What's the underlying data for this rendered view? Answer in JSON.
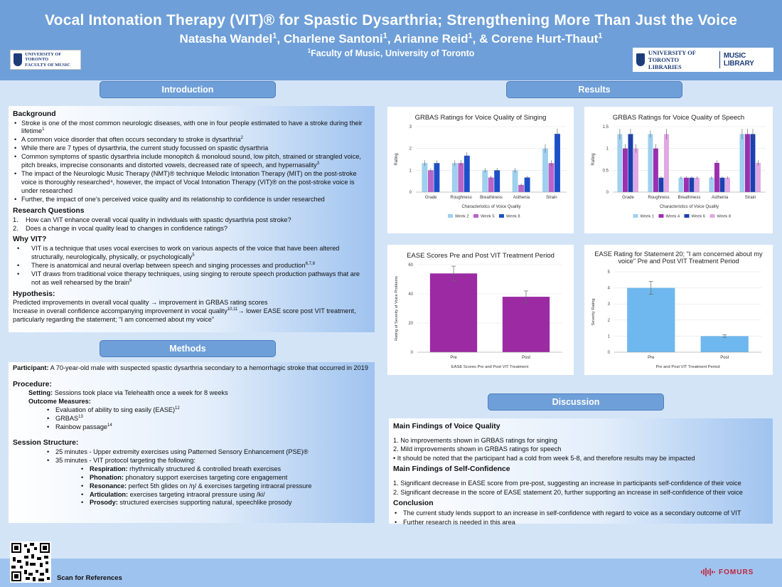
{
  "header": {
    "title": "Vocal Intonation Therapy (VIT)® for Spastic Dysarthria; Strengthening More Than Just the Voice",
    "authors": [
      {
        "name": "Natasha Wandel",
        "sup": "1"
      },
      {
        "name": "Charlene Santoni",
        "sup": "1"
      },
      {
        "name": "Arianne Reid",
        "sup": "1"
      },
      {
        "name": "Corene Hurt-Thaut",
        "sup": "1"
      }
    ],
    "author_sep": ", ",
    "author_last_sep": ", & ",
    "affiliation_sup": "1",
    "affiliation": "Faculty of Music, University of Toronto",
    "logo_left": {
      "line1": "UNIVERSITY OF TORONTO",
      "line2": "FACULTY OF MUSIC"
    },
    "logo_right": {
      "line1": "UNIVERSITY OF TORONTO",
      "line2": "LIBRARIES",
      "line3": "MUSIC LIBRARY"
    }
  },
  "sections": {
    "introduction": "Introduction",
    "results": "Results",
    "methods": "Methods",
    "discussion": "Discussion"
  },
  "introduction": {
    "background_heading": "Background",
    "background": [
      {
        "text": "Stroke is one of the most common neurologic diseases, with one in four people estimated to have a stroke during their lifetime",
        "sup": "1"
      },
      {
        "text": "A common voice disorder that often occurs secondary to stroke is dysarthria",
        "sup": "2"
      },
      {
        "text": "While there are 7 types of dysarthria, the current study focussed on spastic dysarthria",
        "sup": ""
      },
      {
        "text": "Common symptoms of spastic dysarthria include monopitch & monoloud sound, low pitch, strained or strangled voice, pitch breaks, imprecise consonants and distorted vowels, decreased rate of speech, and hypernasality",
        "sup": "3"
      },
      {
        "text": "The impact of the Neurologic Music Therapy (NMT)® technique Melodic Intonation Therapy (MIT) on the post-stroke voice is thoroughly researched⁴, however, the impact of Vocal Intonation Therapy (VIT)® on the post-stroke voice is under researched",
        "sup": ""
      },
      {
        "text": "Further, the impact of one’s perceived voice quality and its relationship to confidence is under researched",
        "sup": ""
      }
    ],
    "rq_heading": "Research Questions",
    "research_questions": [
      {
        "n": "1.",
        "text": "How can VIT enhance overall vocal quality in individuals with spastic dysarthria post stroke?"
      },
      {
        "n": "2.",
        "text": "Does a change in vocal quality lead to changes in confidence ratings?"
      }
    ],
    "why_heading": "Why VIT?",
    "why": [
      {
        "text": "VIT is a technique that uses vocal exercises to work on various aspects of the voice that have been altered structurally, neurologically, physically, or psychologically",
        "sup": "5"
      },
      {
        "text": "There is anatomical and neural overlap between speech and singing processes and production",
        "sup": "6,7,8"
      },
      {
        "text": "VIT draws from traditional voice therapy techniques, using singing to reroute speech production pathways that are not as well rehearsed by the brain",
        "sup": "9"
      }
    ],
    "hyp_heading": "Hypothesis:",
    "hyp1": "Predicted improvements in overall vocal quality → improvement in GRBAS rating scores",
    "hyp2a": "Increase in overall confidence accompanying improvement in vocal quality",
    "hyp2_sup": "10,11",
    "hyp2b": "→ lower EASE score post VIT treatment, particularly regarding the statement; “I am concerned about my voice”"
  },
  "methods": {
    "participant_label": "Participant:",
    "participant_text": "A 70-year-old male with suspected spastic dysarthria secondary to a hemorrhagic stroke that occurred in 2019",
    "procedure_heading": "Procedure:",
    "setting_label": "Setting:",
    "setting_text": "Sessions took place via Telehealth once a week for 8 weeks",
    "outcome_heading": "Outcome Measures:",
    "outcomes": [
      {
        "text": "Evaluation of ability to sing easily (EASE)",
        "sup": "12"
      },
      {
        "text": "GRBAS",
        "sup": "13"
      },
      {
        "text": "Rainbow passage",
        "sup": "14"
      }
    ],
    "structure_heading": "Session Structure:",
    "structure": [
      "25 minutes - Upper extremity exercises using Patterned Sensory Enhancement (PSE)®",
      "35 minutes - VIT protocol targeting the following:"
    ],
    "protocol": [
      {
        "label": "Respiration:",
        "text": "rhythmically structured & controlled breath exercises"
      },
      {
        "label": "Phonation:",
        "text": "phonatory support exercises targeting core engagement"
      },
      {
        "label": "Resonance:",
        "text": "perfect 5th glides on /ŋ/ & exercises targeting intraoral pressure"
      },
      {
        "label": "Articulation:",
        "text": "exercises targeting intraoral pressure using /ki/"
      },
      {
        "label": "Prosody:",
        "text": "structured exercises supporting natural, speechlike prosody"
      }
    ]
  },
  "discussion": {
    "voice_heading": "Main Findings of Voice Quality",
    "voice": [
      "1. No improvements shown in GRBAS ratings for singing",
      "2. Mild improvements shown in GRBAS ratings for speech",
      "• It should be noted that the participant had a cold from week 5-8, and therefore results may be impacted"
    ],
    "conf_heading": "Main Findings of Self-Confidence",
    "conf": [
      "1. Significant decrease in EASE score from pre-post, suggesting an increase in participants self-confidence of their voice",
      "2. Significant decrease in the score of EASE statement 20, further supporting an increase in self-confidence of their voice"
    ],
    "conclusion_heading": "Conclusion",
    "conclusion": [
      "The current study lends support to an increase in self-confidence with regard to voice as a secondary outcome of VIT",
      "Further research is needed in this area"
    ]
  },
  "footer": {
    "scan": "Scan for References",
    "brand": "FOMURS"
  },
  "chart_data": [
    {
      "type": "bar",
      "title": "GRBAS Ratings for Voice Quality of Singing",
      "xlabel": "Characteristics of Voice Quality",
      "ylabel": "Rating",
      "ylim": [
        0,
        3
      ],
      "yticks": [
        0,
        1,
        2,
        3
      ],
      "categories": [
        "Grade",
        "Roughness",
        "Breathiness",
        "Asthenia",
        "Strain"
      ],
      "series": [
        {
          "name": "Week 2",
          "color": "#9fd0ef",
          "values": [
            1.33,
            1.33,
            1.0,
            1.0,
            2.0
          ],
          "err": [
            0.13,
            0.13,
            0.1,
            0.1,
            0.2
          ]
        },
        {
          "name": "Week 5",
          "color": "#b865c8",
          "values": [
            1.0,
            1.33,
            0.67,
            0.33,
            1.33
          ],
          "err": [
            0.08,
            0.13,
            0.08,
            0.06,
            0.13
          ]
        },
        {
          "name": "Week 8",
          "color": "#1c4fc9",
          "values": [
            1.33,
            1.67,
            1.0,
            0.67,
            2.67
          ],
          "err": [
            0.13,
            0.16,
            0.1,
            0.07,
            0.25
          ]
        }
      ],
      "legend": "bottom"
    },
    {
      "type": "bar",
      "title": "GRBAS Ratings for Voice Quality of Speech",
      "xlabel": "Characteristics of Voice Quality",
      "ylabel": "Rating",
      "ylim": [
        0,
        1.5
      ],
      "yticks": [
        0,
        0.5,
        1.0,
        1.5
      ],
      "categories": [
        "Grade",
        "Roughness",
        "Breathiness",
        "Asthenia",
        "Strain"
      ],
      "series": [
        {
          "name": "Week 1",
          "color": "#9fd0ef",
          "values": [
            1.33,
            1.33,
            0.33,
            0.33,
            1.33
          ],
          "err": [
            0.12,
            0.08,
            0.03,
            0.03,
            0.12
          ]
        },
        {
          "name": "Week 4",
          "color": "#9d2fb0",
          "values": [
            1.0,
            1.0,
            0.33,
            0.67,
            1.33
          ],
          "err": [
            0.1,
            0.1,
            0.03,
            0.06,
            0.12
          ]
        },
        {
          "name": "Week 6",
          "color": "#1c3fb0",
          "values": [
            1.33,
            0.33,
            0.33,
            0.33,
            1.33
          ],
          "err": [
            0.12,
            0.03,
            0.03,
            0.03,
            0.12
          ]
        },
        {
          "name": "Week 8",
          "color": "#e0a8e3",
          "values": [
            1.0,
            1.33,
            0.33,
            0.33,
            0.67
          ],
          "err": [
            0.1,
            0.12,
            0.03,
            0.03,
            0.06
          ]
        }
      ],
      "legend": "bottom"
    },
    {
      "type": "bar",
      "title": "EASE Scores Pre and Post VIT Treatment Period",
      "xlabel": "EASE Scores Pre and Post VIT Treatment",
      "ylabel": "Rating of Severity of Voice Problems",
      "ylim": [
        0,
        60
      ],
      "yticks": [
        0,
        20,
        40,
        60
      ],
      "categories": [
        "Pre",
        "Post"
      ],
      "values": [
        54,
        38
      ],
      "err": [
        5,
        4
      ],
      "color": "#9b2aa3"
    },
    {
      "type": "bar",
      "title": "EASE Rating for Statement 20; \"I am concerned about my voice\" Pre and Post VIT Treatment Period",
      "title_lines": [
        "EASE Rating for Statement 20; \"I am concerned about my",
        "voice\" Pre and Post VIT Treatment Period"
      ],
      "xlabel": "Pre and Post VIT Treatment Period",
      "ylabel": "Severity Rating",
      "ylim": [
        0,
        5
      ],
      "yticks": [
        0,
        1,
        2,
        3,
        4,
        5
      ],
      "categories": [
        "Pre",
        "Post"
      ],
      "values": [
        4,
        1
      ],
      "err": [
        0.4,
        0.08
      ],
      "color": "#6fb8ef"
    }
  ]
}
